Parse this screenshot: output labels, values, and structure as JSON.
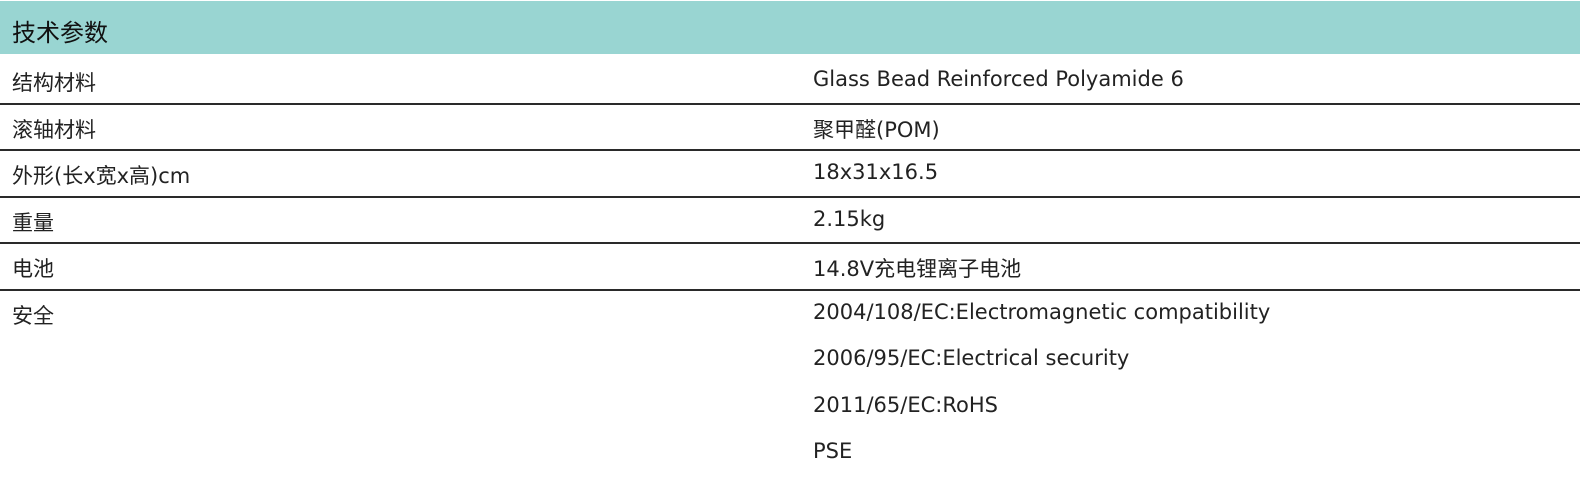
{
  "header": {
    "title": "技术参数",
    "background": "#99d5d2"
  },
  "rows": [
    {
      "label": "结构材料",
      "value": "Glass Bead Reinforced Polyamide 6"
    },
    {
      "label": "滚轴材料",
      "value": "聚甲醛(POM)"
    },
    {
      "label": "外形(长x宽x高)cm",
      "value": "18x31x16.5"
    },
    {
      "label": "重量",
      "value": "2.15kg"
    },
    {
      "label": "电池",
      "value": "14.8V充电锂离子电池"
    }
  ],
  "safety": {
    "label": "安全",
    "values": [
      "2004/108/EC:Electromagnetic compatibility",
      "2006/95/EC:Electrical security",
      "2011/65/EC:RoHS",
      "PSE"
    ]
  }
}
